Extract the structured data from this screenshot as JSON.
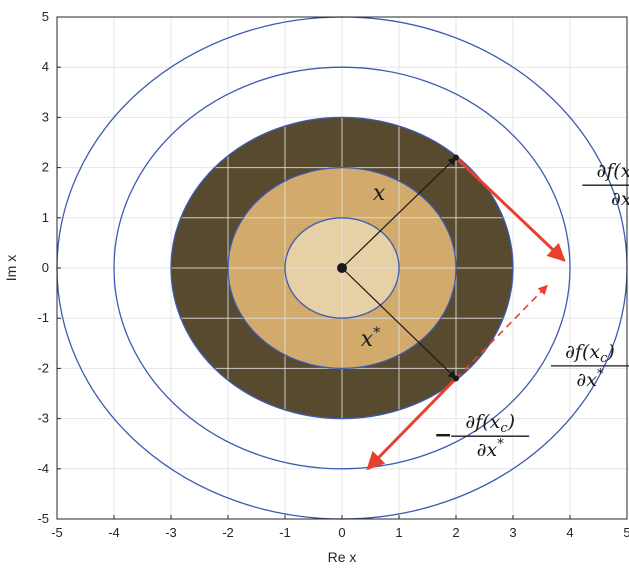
{
  "chart_data": {
    "type": "scatter",
    "xlabel": "Re x",
    "ylabel": "Im x",
    "xlim": [
      -5,
      5
    ],
    "ylim": [
      -5,
      5
    ],
    "grid": true,
    "xticks": [
      "-5",
      "-4",
      "-3",
      "-2",
      "-1",
      "0",
      "1",
      "2",
      "3",
      "4",
      "5"
    ],
    "yticks": [
      "5",
      "4",
      "3",
      "2",
      "1",
      "0",
      "-1",
      "-2",
      "-3",
      "-4",
      "-5"
    ],
    "filled_disks": [
      {
        "radius": 3,
        "color": "#584a2e"
      },
      {
        "radius": 2,
        "color": "#d2aa6c"
      },
      {
        "radius": 1,
        "color": "#e6d1a7"
      }
    ],
    "circles": [
      {
        "radius": 1,
        "color": "#3d5bb0"
      },
      {
        "radius": 2,
        "color": "#3d5bb0"
      },
      {
        "radius": 3,
        "color": "#3d5bb0"
      },
      {
        "radius": 4,
        "color": "#3d5bb0"
      },
      {
        "radius": 5,
        "color": "#3d5bb0"
      }
    ],
    "points": [
      {
        "name": "origin",
        "x": 0,
        "y": 0
      },
      {
        "name": "x",
        "x": 2,
        "y": 2.2
      },
      {
        "name": "x_conj",
        "x": 2,
        "y": -2.2
      }
    ],
    "vectors": [
      {
        "name": "x",
        "from": [
          0,
          0
        ],
        "to": [
          2,
          2.2
        ],
        "color": "#1a1a1a",
        "style": "solid"
      },
      {
        "name": "x_conj",
        "from": [
          0,
          0
        ],
        "to": [
          2,
          -2.2
        ],
        "color": "#1a1a1a",
        "style": "solid"
      },
      {
        "name": "grad_x",
        "from": [
          2,
          2.2
        ],
        "to": [
          3.9,
          0.15
        ],
        "color": "#e8402e",
        "style": "solid"
      },
      {
        "name": "grad_x_conj",
        "from": [
          2,
          -2.2
        ],
        "to": [
          3.6,
          -0.35
        ],
        "color": "#e8402e",
        "style": "dashed"
      },
      {
        "name": "neg_grad_x_conj",
        "from": [
          2,
          -2.2
        ],
        "to": [
          0.45,
          -4.0
        ],
        "color": "#e8402e",
        "style": "solid"
      }
    ],
    "annotations": {
      "x_label": {
        "text": "x",
        "x": 0.65,
        "y": 1.35
      },
      "x_conj_label": {
        "base": "x",
        "sup": "*",
        "x": 0.5,
        "y": -1.55
      },
      "grad_x": {
        "numerator": "∂f(x",
        "sub": "c",
        "close": ")",
        "denominator": "∂x",
        "x": 4.9,
        "y": 1.65
      },
      "grad_x_conj": {
        "numerator": "∂f(x",
        "sub": "c",
        "close": ")",
        "denominator": "∂x",
        "den_sup": "*",
        "x": 4.35,
        "y": -1.95
      },
      "neg_grad_x_conj": {
        "sign": "−",
        "numerator": "∂f(x",
        "sub": "c",
        "close": ")",
        "denominator": "∂x",
        "den_sup": "*",
        "x": 2.6,
        "y": -3.35
      }
    }
  }
}
